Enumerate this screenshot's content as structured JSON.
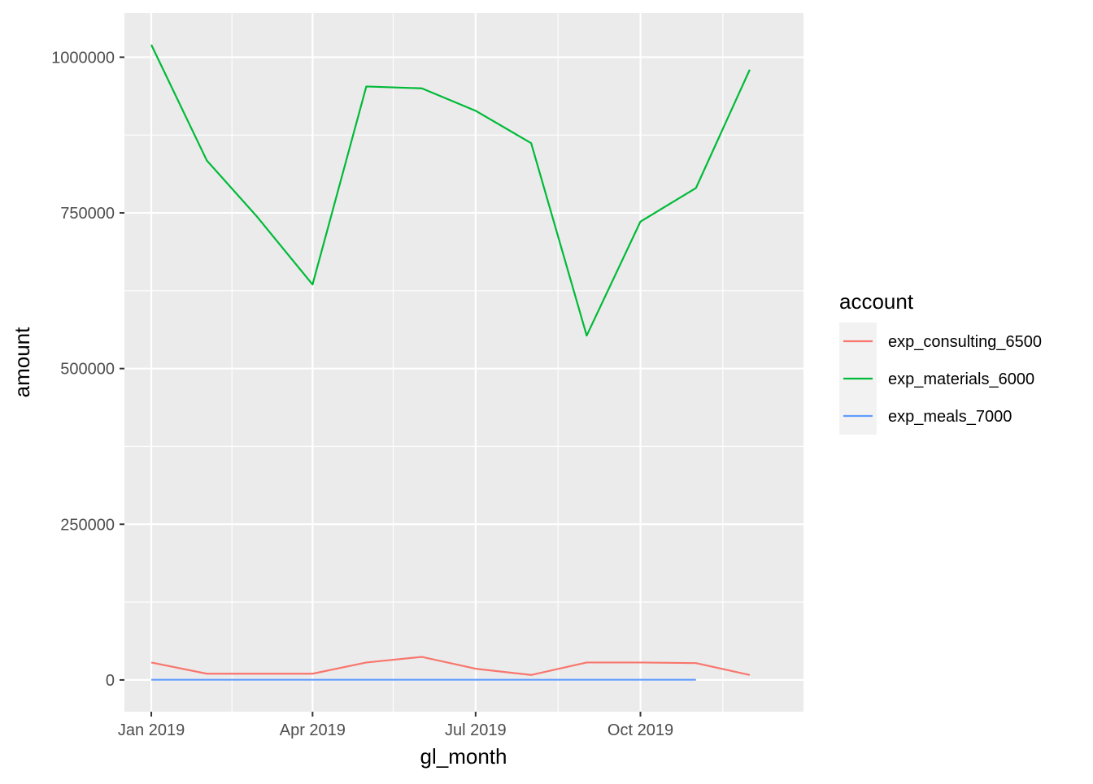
{
  "chart_data": {
    "type": "line",
    "xlabel": "gl_month",
    "ylabel": "amount",
    "x": [
      "2019-01-01",
      "2019-02-01",
      "2019-03-01",
      "2019-04-01",
      "2019-05-01",
      "2019-06-01",
      "2019-07-01",
      "2019-08-01",
      "2019-09-01",
      "2019-10-01",
      "2019-11-01",
      "2019-12-01"
    ],
    "xlim": [
      "2018-12-17",
      "2019-12-31"
    ],
    "x_ticks": [
      {
        "date": "2019-01-01",
        "label": "Jan 2019"
      },
      {
        "date": "2019-04-01",
        "label": "Apr 2019"
      },
      {
        "date": "2019-07-01",
        "label": "Jul 2019"
      },
      {
        "date": "2019-10-01",
        "label": "Oct 2019"
      }
    ],
    "x_minor_ticks": [
      "2019-02-15",
      "2019-05-16",
      "2019-08-16",
      "2019-11-16"
    ],
    "ylim": [
      -51000,
      1071000
    ],
    "y_ticks": [
      0,
      250000,
      500000,
      750000,
      1000000
    ],
    "y_tick_labels": [
      "0",
      "250000",
      "500000",
      "750000",
      "1000000"
    ],
    "grid": true,
    "legend": {
      "title": "account",
      "position": "right"
    },
    "series": [
      {
        "name": "exp_consulting_6500",
        "color": "#F8766D",
        "values": [
          28000,
          10000,
          10000,
          10000,
          28000,
          37000,
          18000,
          8000,
          28000,
          28000,
          27000,
          8000
        ]
      },
      {
        "name": "exp_materials_6000",
        "color": "#00BA38",
        "values": [
          1020000,
          834000,
          744000,
          635000,
          953000,
          950000,
          914000,
          862000,
          553000,
          736000,
          790000,
          980000
        ]
      },
      {
        "name": "exp_meals_7000",
        "color": "#619CFF",
        "values": [
          300,
          300,
          300,
          300,
          300,
          300,
          300,
          300,
          300,
          300,
          300,
          null
        ]
      }
    ]
  }
}
